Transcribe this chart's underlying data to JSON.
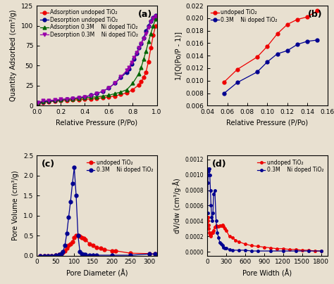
{
  "panel_a": {
    "title": "(a)",
    "title_loc": "upper right",
    "xlabel": "Relative Pressure (P/Po)",
    "ylabel": "Quantity Adsorbed (cm³/g)",
    "xlim": [
      0.0,
      1.0
    ],
    "ylim": [
      0,
      125
    ],
    "yticks": [
      0,
      25,
      50,
      75,
      100,
      125
    ],
    "xticks": [
      0.0,
      0.2,
      0.4,
      0.6,
      0.8,
      1.0
    ],
    "legend_loc": "upper left",
    "series": [
      {
        "label": "Adsorption undoped TiO₂",
        "color": "#EE0000",
        "marker": "o",
        "markersize": 3.5,
        "x": [
          0.01,
          0.05,
          0.1,
          0.15,
          0.2,
          0.25,
          0.3,
          0.35,
          0.4,
          0.45,
          0.5,
          0.55,
          0.6,
          0.65,
          0.7,
          0.75,
          0.8,
          0.85,
          0.87,
          0.89,
          0.91,
          0.93,
          0.95,
          0.97,
          0.99
        ],
        "y": [
          3,
          4,
          5,
          5.5,
          6,
          6.5,
          7,
          7.5,
          8,
          8.5,
          9,
          10,
          11,
          12,
          14,
          16,
          20,
          26,
          30,
          35,
          42,
          55,
          72,
          88,
          100
        ]
      },
      {
        "label": "Desorption undoped TiO₂",
        "color": "#000090",
        "marker": "o",
        "markersize": 3.5,
        "x": [
          0.99,
          0.97,
          0.95,
          0.93,
          0.91,
          0.89,
          0.87,
          0.85,
          0.83,
          0.81,
          0.79,
          0.77,
          0.75,
          0.7,
          0.65,
          0.6,
          0.55,
          0.5,
          0.45,
          0.4,
          0.35,
          0.3,
          0.25,
          0.2,
          0.15,
          0.1,
          0.05,
          0.01
        ],
        "y": [
          113,
          110,
          106,
          100,
          93,
          85,
          78,
          72,
          65,
          58,
          52,
          46,
          42,
          35,
          28,
          22,
          18,
          15,
          13,
          11,
          10,
          9,
          8,
          7,
          6,
          5.5,
          5,
          3.5
        ]
      },
      {
        "label": "Adsorption 0.3M    Ni doped TiO₂",
        "color": "#006400",
        "marker": "^",
        "markersize": 3.5,
        "x": [
          0.01,
          0.05,
          0.1,
          0.15,
          0.2,
          0.25,
          0.3,
          0.35,
          0.4,
          0.45,
          0.5,
          0.55,
          0.6,
          0.65,
          0.7,
          0.75,
          0.8,
          0.85,
          0.87,
          0.89,
          0.91,
          0.93,
          0.95,
          0.97,
          0.99
        ],
        "y": [
          4,
          5.5,
          6.5,
          7,
          7.5,
          8,
          8.5,
          9,
          10,
          10.5,
          11,
          12,
          13,
          15,
          17,
          20,
          28,
          40,
          48,
          58,
          68,
          80,
          90,
          100,
          108
        ]
      },
      {
        "label": "Desorption 0.3M    Ni doped TiO₂",
        "color": "#9900AA",
        "marker": "v",
        "markersize": 3.5,
        "x": [
          0.99,
          0.97,
          0.95,
          0.93,
          0.91,
          0.89,
          0.87,
          0.85,
          0.83,
          0.81,
          0.79,
          0.77,
          0.75,
          0.7,
          0.65,
          0.6,
          0.55,
          0.5,
          0.45,
          0.4,
          0.35,
          0.3,
          0.25,
          0.2,
          0.15,
          0.1,
          0.05,
          0.01
        ],
        "y": [
          112,
          109,
          105,
          98,
          90,
          84,
          78,
          72,
          66,
          60,
          54,
          48,
          44,
          36,
          28,
          22,
          18,
          15,
          12.5,
          11,
          10,
          9,
          8.5,
          8,
          7,
          6.5,
          6,
          4
        ]
      }
    ]
  },
  "panel_b": {
    "title": "(b)",
    "title_loc": "upper right",
    "xlabel": "Relative Pressure (P/Po)",
    "ylabel": "1/[Q(Po/P - 1)]",
    "xlim": [
      0.04,
      0.16
    ],
    "ylim": [
      0.006,
      0.022
    ],
    "yticks": [
      0.006,
      0.008,
      0.01,
      0.012,
      0.014,
      0.016,
      0.018,
      0.02,
      0.022
    ],
    "xticks": [
      0.04,
      0.06,
      0.08,
      0.1,
      0.12,
      0.14,
      0.16
    ],
    "legend_loc": "upper left",
    "series": [
      {
        "label": "undoped TiO₂",
        "color": "#EE0000",
        "marker": "o",
        "markersize": 3.5,
        "x": [
          0.057,
          0.07,
          0.09,
          0.1,
          0.11,
          0.12,
          0.13,
          0.14,
          0.15
        ],
        "y": [
          0.0098,
          0.0118,
          0.0138,
          0.0155,
          0.0175,
          0.019,
          0.0198,
          0.0202,
          0.0212
        ]
      },
      {
        "label": "0.3M    Ni doped TiO₂",
        "color": "#000090",
        "marker": "o",
        "markersize": 3.5,
        "x": [
          0.057,
          0.07,
          0.09,
          0.1,
          0.11,
          0.12,
          0.13,
          0.14,
          0.15
        ],
        "y": [
          0.008,
          0.0097,
          0.0114,
          0.013,
          0.0143,
          0.0148,
          0.0158,
          0.0163,
          0.0165
        ]
      }
    ]
  },
  "panel_c": {
    "title": "(c)",
    "title_loc": "upper left",
    "xlabel": "Pore Diameter (Å)",
    "ylabel": "Pore Volume (cm³/g)",
    "xlim": [
      0,
      320
    ],
    "ylim": [
      0,
      2.5
    ],
    "yticks": [
      0.0,
      0.5,
      1.0,
      1.5,
      2.0,
      2.5
    ],
    "xticks": [
      0,
      50,
      100,
      150,
      200,
      250,
      300
    ],
    "legend_loc": "upper right",
    "series": [
      {
        "label": "undoped TiO₂",
        "color": "#EE0000",
        "marker": "o",
        "markersize": 3.5,
        "x": [
          10,
          20,
          30,
          40,
          50,
          60,
          65,
          70,
          75,
          80,
          85,
          90,
          95,
          100,
          105,
          110,
          115,
          120,
          125,
          130,
          140,
          150,
          160,
          170,
          180,
          200,
          210,
          250,
          300,
          315
        ],
        "y": [
          0,
          0,
          0,
          0,
          0.01,
          0.03,
          0.05,
          0.08,
          0.12,
          0.18,
          0.25,
          0.3,
          0.35,
          0.45,
          0.5,
          0.5,
          0.48,
          0.45,
          0.43,
          0.4,
          0.3,
          0.25,
          0.2,
          0.18,
          0.15,
          0.12,
          0.12,
          0.06,
          0.05,
          0.04
        ]
      },
      {
        "label": "0.3M    Ni doped TiO₂",
        "color": "#000090",
        "marker": "o",
        "markersize": 3.5,
        "x": [
          10,
          20,
          30,
          40,
          50,
          60,
          65,
          70,
          75,
          80,
          85,
          90,
          95,
          100,
          105,
          110,
          115,
          120,
          125,
          130,
          140,
          150,
          160,
          200,
          250,
          300,
          315
        ],
        "y": [
          0,
          0,
          0,
          0,
          0.01,
          0.02,
          0.04,
          0.1,
          0.25,
          0.55,
          0.96,
          1.35,
          1.8,
          2.2,
          1.5,
          0.5,
          0.1,
          0.05,
          0.03,
          0.02,
          0.01,
          0.01,
          0.01,
          0.01,
          0.01,
          0.04,
          0.04
        ]
      }
    ]
  },
  "panel_d": {
    "title": "(d)",
    "title_loc": "upper left",
    "xlabel": "Pore Width (Å)",
    "ylabel": "dV/dw (cm³/g·Å)",
    "xlim": [
      0,
      1900
    ],
    "ylim": [
      -5e-05,
      0.0012
    ],
    "yticks": [
      0.0,
      0.0002,
      0.0004,
      0.0006,
      0.0008,
      0.001,
      0.0012
    ],
    "xticks": [
      0,
      300,
      600,
      900,
      1200,
      1500,
      1800
    ],
    "legend_loc": "upper right",
    "series": [
      {
        "label": "undoped TiO₂",
        "color": "#EE0000",
        "marker": "o",
        "markersize": 2.5,
        "x": [
          5,
          10,
          15,
          20,
          25,
          30,
          40,
          50,
          60,
          70,
          80,
          90,
          100,
          120,
          140,
          160,
          180,
          200,
          220,
          240,
          260,
          280,
          300,
          350,
          400,
          450,
          500,
          600,
          700,
          800,
          900,
          1000,
          1100,
          1200,
          1300,
          1400,
          1500,
          1600,
          1700,
          1800
        ],
        "y": [
          0.00045,
          0.00045,
          0.0004,
          0.00035,
          0.0003,
          0.00025,
          0.00022,
          0.0002,
          0.00022,
          0.00025,
          0.00025,
          0.00025,
          0.00028,
          0.00032,
          0.00034,
          0.00033,
          0.00033,
          0.00034,
          0.00034,
          0.00035,
          0.00033,
          0.0003,
          0.00028,
          0.0002,
          0.00018,
          0.00015,
          0.00013,
          0.0001,
          8e-05,
          7e-05,
          6e-05,
          5e-05,
          4e-05,
          4e-05,
          3e-05,
          3e-05,
          2e-05,
          2e-05,
          1e-05,
          1e-05
        ]
      },
      {
        "label": "0.3M    Ni doped TiO₂",
        "color": "#000090",
        "marker": "o",
        "markersize": 2.5,
        "x": [
          5,
          10,
          15,
          20,
          25,
          30,
          40,
          50,
          60,
          70,
          80,
          90,
          100,
          120,
          140,
          160,
          180,
          200,
          220,
          240,
          260,
          280,
          300,
          350,
          400,
          500,
          600,
          700,
          800,
          1000,
          1200,
          1400,
          1600,
          1800
        ],
        "y": [
          0.0005,
          0.0009,
          0.001,
          0.00105,
          0.00108,
          0.00108,
          0.001,
          0.0008,
          0.0006,
          0.00045,
          0.0004,
          0.0005,
          0.00075,
          0.0008,
          0.0004,
          0.00025,
          0.00018,
          0.00012,
          0.0001,
          8e-05,
          6e-05,
          5e-05,
          5e-05,
          3e-05,
          2e-05,
          2e-05,
          2e-05,
          1e-05,
          1e-05,
          1e-05,
          1e-05,
          1e-05,
          1e-05,
          1e-05
        ]
      }
    ]
  },
  "background_color": "#e8e0d0",
  "font_size": 7
}
